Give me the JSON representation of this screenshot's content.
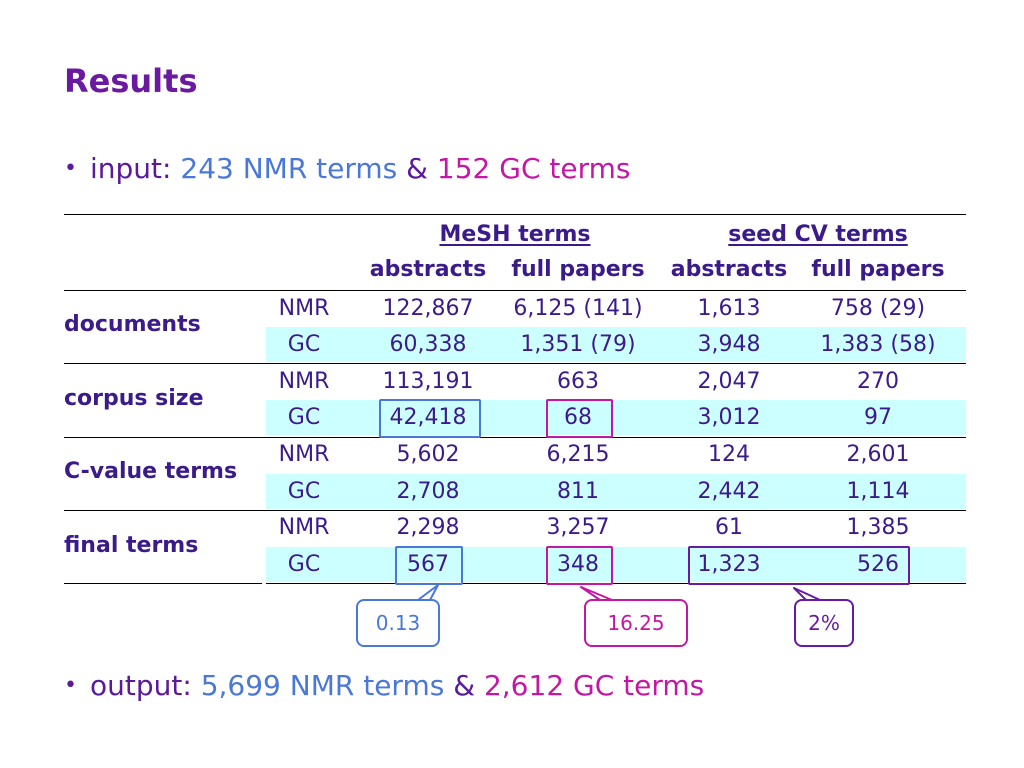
{
  "title": "Results",
  "input": {
    "prefix": "input:",
    "nmr": "243 NMR terms",
    "amp": "&",
    "gc": "152 GC terms"
  },
  "output": {
    "prefix": "output:",
    "nmr": "5,699 NMR terms",
    "amp": "&",
    "gc": "2,612 GC terms"
  },
  "table": {
    "group_mesh": "MeSH terms",
    "group_seed": "seed CV terms",
    "subheaders": [
      "abstracts",
      "full papers",
      "abstracts",
      "full papers"
    ],
    "rows": [
      {
        "label": "documents",
        "nmr": [
          "122,867",
          "6,125 (141)",
          "1,613",
          "758 (29)"
        ],
        "gc": [
          "60,338",
          "1,351 (79)",
          "3,948",
          "1,383 (58)"
        ]
      },
      {
        "label": "corpus size",
        "nmr": [
          "113,191",
          "663",
          "2,047",
          "270"
        ],
        "gc": [
          "42,418",
          "68",
          "3,012",
          "97"
        ]
      },
      {
        "label": "C-value terms",
        "nmr": [
          "5,602",
          "6,215",
          "124",
          "2,601"
        ],
        "gc": [
          "2,708",
          "811",
          "2,442",
          "1,114"
        ]
      },
      {
        "label": "final terms",
        "nmr": [
          "2,298",
          "3,257",
          "61",
          "1,385"
        ],
        "gc": [
          "567",
          "348",
          "1,323",
          "526"
        ]
      }
    ],
    "nmr_label": "NMR",
    "gc_label": "GC"
  },
  "callouts": {
    "blue": "0.13",
    "magenta": "16.25",
    "purple": "2%"
  },
  "colors": {
    "title": "#6a1aa0",
    "blue": "#4a78d8",
    "magenta": "#c418a4",
    "purple": "#6a1aa0",
    "band": "#ccffff"
  }
}
